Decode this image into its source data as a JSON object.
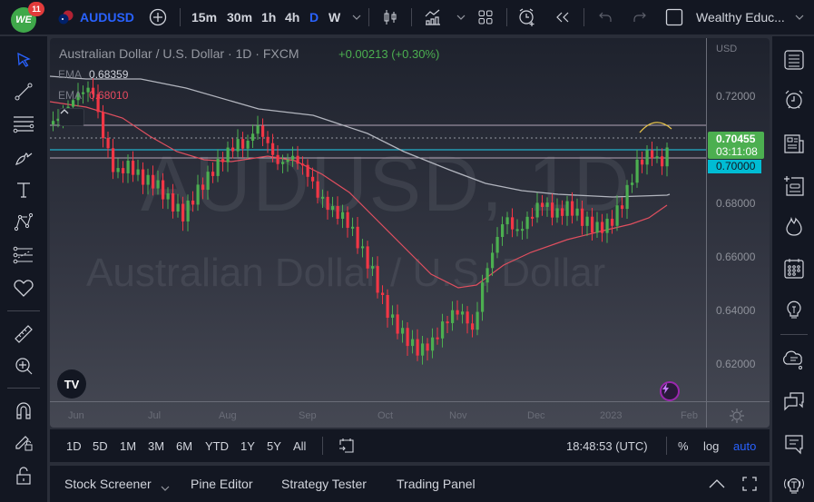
{
  "topbar": {
    "notifications": "11",
    "symbol": "AUDUSD",
    "intervals": [
      "15m",
      "30m",
      "1h",
      "4h",
      "D",
      "W"
    ],
    "active_interval": "D",
    "layout_name": "Wealthy Educ...",
    "icons": [
      "add-symbol-icon",
      "chevron-down-icon",
      "candles-icon",
      "indicators-icon",
      "layout-grid-icon",
      "alert-icon",
      "replay-icon",
      "undo-icon",
      "redo-icon",
      "fullscreen-square-icon"
    ]
  },
  "chart": {
    "title": "Australian Dollar / U.S. Dollar · 1D · FXCM",
    "change": "+0.00213 (+0.30%)",
    "ema1_label": "EMA",
    "ema1_value": "0.68359",
    "ema2_label": "EMA",
    "ema2_value": "0.68010",
    "watermark_symbol": "AUDUSD, 1D",
    "watermark_desc": "Australian Dollar / U.S. Dollar",
    "currency": "USD",
    "price_ticks": [
      "0.72000",
      "0.70000",
      "0.68000",
      "0.66000",
      "0.64000",
      "0.62000"
    ],
    "last_price": "0.70455",
    "countdown": "03:11:08",
    "level_price": "0.70000",
    "time_ticks": [
      "Jun",
      "Jul",
      "Aug",
      "Sep",
      "Oct",
      "Nov",
      "Dec",
      "2023",
      "Feb"
    ],
    "colors": {
      "up": "#4caf50",
      "down": "#f23645",
      "ema_slow": "#b2b5be",
      "ema_fast": "#e84a5f",
      "level_line": "#00bcd4",
      "accent": "#2962ff"
    }
  },
  "rangebar": {
    "ranges": [
      "1D",
      "5D",
      "1M",
      "3M",
      "6M",
      "YTD",
      "1Y",
      "5Y",
      "All"
    ],
    "time": "18:48:53 (UTC)",
    "percent": "%",
    "log": "log",
    "auto": "auto"
  },
  "panelbar": {
    "tabs": [
      "Stock Screener",
      "Pine Editor",
      "Strategy Tester",
      "Trading Panel"
    ]
  }
}
